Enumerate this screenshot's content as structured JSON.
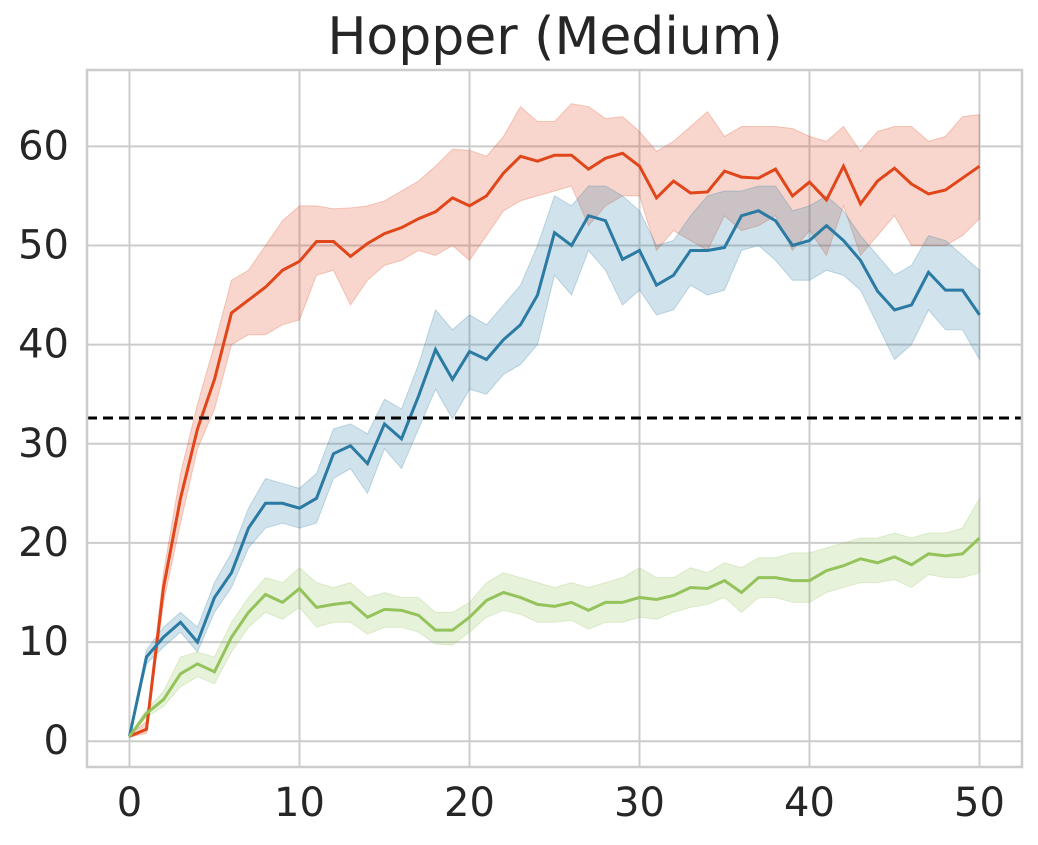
{
  "chart_data": {
    "type": "line",
    "title": "Hopper (Medium)",
    "x": [
      0,
      1,
      2,
      3,
      4,
      5,
      6,
      7,
      8,
      9,
      10,
      11,
      12,
      13,
      14,
      15,
      16,
      17,
      18,
      19,
      20,
      21,
      22,
      23,
      24,
      25,
      26,
      27,
      28,
      29,
      30,
      31,
      32,
      33,
      34,
      35,
      36,
      37,
      38,
      39,
      40,
      41,
      42,
      43,
      44,
      45,
      46,
      47,
      48,
      49,
      50
    ],
    "xlim": [
      -2.5,
      52.5
    ],
    "xticks": [
      0,
      10,
      20,
      30,
      40,
      50
    ],
    "ylim": [
      -2.6,
      67.7
    ],
    "yticks": [
      0,
      10,
      20,
      30,
      40,
      50,
      60
    ],
    "grid": true,
    "reference_line": 32.6,
    "series": [
      {
        "color": "#e0461a",
        "values": [
          0.5,
          1.2,
          15.5,
          24.5,
          31.5,
          36.5,
          43.2,
          44.5,
          45.8,
          47.5,
          48.4,
          50.4,
          50.4,
          48.9,
          50.2,
          51.2,
          51.8,
          52.7,
          53.4,
          54.8,
          54.0,
          55.0,
          57.3,
          59.0,
          58.5,
          59.1,
          59.1,
          57.7,
          58.8,
          59.3,
          58.0,
          54.8,
          56.5,
          55.3,
          55.4,
          57.5,
          56.9,
          56.8,
          57.7,
          55.0,
          56.4,
          54.6,
          58.0,
          54.2,
          56.5,
          57.8,
          56.2,
          55.2,
          55.6,
          56.8,
          58.0
        ],
        "upper": [
          0.6,
          2,
          17,
          27,
          34,
          40,
          46.5,
          47.5,
          50,
          52.5,
          54,
          54,
          53.7,
          53.8,
          54,
          54.5,
          55.5,
          56.5,
          58,
          59.7,
          59.6,
          59,
          61,
          64,
          62.5,
          62.5,
          64.3,
          64,
          62.8,
          63,
          61.5,
          59.5,
          60.5,
          62,
          63.5,
          61,
          62,
          62,
          62,
          61.8,
          61,
          60.5,
          62,
          59.5,
          61.5,
          62,
          62,
          60.5,
          61,
          63,
          63.2
        ],
        "lower": [
          0.4,
          0.8,
          14,
          22,
          29.5,
          33.5,
          40,
          41,
          41,
          42,
          42.5,
          47,
          47.5,
          44,
          46.5,
          48,
          48.5,
          49.5,
          49,
          50,
          48.5,
          51,
          53.5,
          54.5,
          55,
          55.5,
          56,
          52,
          54,
          55,
          55,
          49.5,
          51.5,
          50.5,
          49.5,
          53,
          51.5,
          52,
          53,
          49.5,
          51.5,
          49,
          54,
          49,
          51,
          53,
          50,
          50,
          50,
          51,
          52.7
        ]
      },
      {
        "color": "#2a7aa3",
        "values": [
          0.5,
          8.5,
          10.5,
          12,
          10,
          14.5,
          17,
          21.5,
          24,
          24,
          23.5,
          24.5,
          29,
          29.8,
          28,
          32,
          30.5,
          34.8,
          39.5,
          36.5,
          39.3,
          38.5,
          40.5,
          42,
          45,
          51.3,
          50,
          53,
          52.5,
          48.6,
          49.5,
          46,
          47,
          49.5,
          49.5,
          49.8,
          53,
          53.5,
          52.5,
          50,
          50.5,
          52,
          50.5,
          48.5,
          45.4,
          43.5,
          44,
          47.3,
          45.5,
          45.5,
          43
        ],
        "upper": [
          0.6,
          9.2,
          11.5,
          13,
          11.5,
          16,
          19,
          23.5,
          26.5,
          26,
          25.5,
          27,
          31.5,
          32,
          31,
          34.5,
          33.5,
          38,
          43.5,
          41.5,
          43,
          42,
          44,
          46,
          50,
          55,
          54,
          56,
          56,
          55,
          53.5,
          50,
          50.5,
          53,
          55,
          55.5,
          55.5,
          56,
          56,
          53.5,
          54,
          55,
          53.5,
          51,
          49,
          47,
          48,
          51,
          50.5,
          49,
          47.5
        ],
        "lower": [
          0.4,
          7.8,
          9.5,
          11,
          9,
          13,
          15.5,
          19.5,
          21.5,
          22,
          21.5,
          22,
          26.5,
          27.5,
          25,
          29.5,
          27.5,
          31.5,
          35.5,
          32.5,
          35.5,
          35,
          37,
          38,
          40,
          47,
          45,
          49.5,
          47.5,
          44,
          45.5,
          43,
          43.5,
          46,
          45,
          45.5,
          49.5,
          50,
          48.5,
          46.5,
          46.5,
          47.5,
          47,
          45.5,
          42,
          38.5,
          40,
          43.5,
          41.5,
          41.5,
          38.5
        ]
      },
      {
        "color": "#93c35a",
        "values": [
          0.5,
          2.8,
          4.2,
          6.8,
          7.8,
          7,
          10.5,
          13,
          14.8,
          14,
          15.4,
          13.5,
          13.8,
          14,
          12.5,
          13.3,
          13.2,
          12.7,
          11.2,
          11.2,
          12.5,
          14.2,
          15,
          14.5,
          13.8,
          13.6,
          14,
          13.2,
          14,
          14,
          14.5,
          14.3,
          14.7,
          15.5,
          15.4,
          16.2,
          15,
          16.5,
          16.5,
          16.2,
          16.2,
          17.2,
          17.7,
          18.4,
          18,
          18.6,
          17.8,
          18.9,
          18.7,
          18.9,
          20.5
        ],
        "upper": [
          0.6,
          3.2,
          5,
          8.5,
          9,
          8.5,
          12,
          14.5,
          16.5,
          16,
          17.5,
          16,
          15.5,
          16,
          14.5,
          15,
          14.5,
          14.5,
          13,
          13,
          14,
          16,
          17,
          16.5,
          16,
          15.5,
          16,
          15.5,
          16,
          16.5,
          17.5,
          16.5,
          16.5,
          17.5,
          17,
          18,
          17.5,
          18.5,
          18.5,
          19,
          19,
          19.5,
          20,
          20.5,
          20.5,
          21,
          20.5,
          21,
          21,
          21.5,
          24.5
        ],
        "lower": [
          0.4,
          2.4,
          3.5,
          5.5,
          6.5,
          5.8,
          9,
          11.5,
          13,
          12.3,
          13.5,
          11.5,
          12,
          12,
          10.8,
          11.5,
          11.5,
          11,
          9.8,
          9.7,
          11,
          12.5,
          13.2,
          12.8,
          12,
          12,
          12.2,
          11.3,
          12,
          12,
          12.5,
          12.3,
          13,
          13.5,
          13.8,
          14.5,
          13,
          14.5,
          14.5,
          14,
          14,
          15,
          15.5,
          16,
          16,
          16.3,
          15.5,
          16.8,
          16.5,
          16.5,
          17
        ]
      }
    ]
  }
}
